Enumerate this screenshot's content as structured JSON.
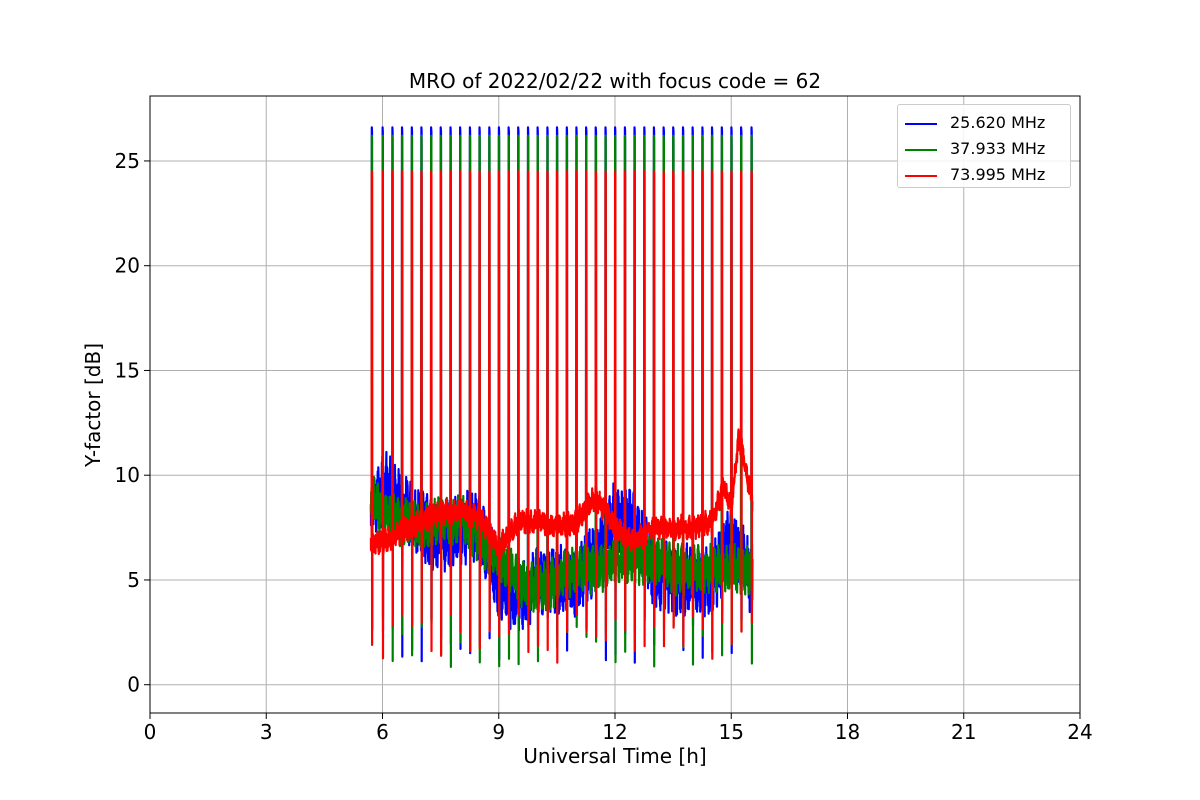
{
  "chart_data": {
    "type": "line",
    "title": "MRO of 2022/02/22 with focus code = 62",
    "xlabel": "Universal Time [h]",
    "ylabel": "Y-factor [dB]",
    "xlim": [
      0,
      24
    ],
    "ylim": [
      -1.35,
      28.1
    ],
    "xticks": [
      "0",
      "3",
      "6",
      "9",
      "12",
      "15",
      "18",
      "21",
      "24"
    ],
    "yticks": [
      "0",
      "5",
      "10",
      "15",
      "20",
      "25"
    ],
    "grid": true,
    "legend_position": "top-right",
    "data_start_hour": 5.7,
    "data_end_hour": 15.55,
    "calibration_spikes_x": [
      5.72,
      6.0,
      6.25,
      6.5,
      6.75,
      7.0,
      7.25,
      7.5,
      7.75,
      8.0,
      8.25,
      8.5,
      8.75,
      9.0,
      9.25,
      9.5,
      9.75,
      10.0,
      10.25,
      10.5,
      10.75,
      11.0,
      11.25,
      11.5,
      11.75,
      12.0,
      12.25,
      12.5,
      12.75,
      13.0,
      13.25,
      13.5,
      13.75,
      14.0,
      14.25,
      14.5,
      14.75,
      15.0,
      15.25,
      15.52
    ],
    "series": [
      {
        "name": "25.620 MHz",
        "color": "#0000ff",
        "spike_peak": 26.6,
        "spike_min": 1.0,
        "baseline_x": [
          5.7,
          6.0,
          6.5,
          7.0,
          7.5,
          8.0,
          8.5,
          9.0,
          9.5,
          10.0,
          10.5,
          11.0,
          11.5,
          12.0,
          12.5,
          13.0,
          13.5,
          14.0,
          14.5,
          15.0,
          15.55
        ],
        "baseline_y": [
          8.0,
          9.5,
          8.5,
          7.5,
          7.0,
          7.5,
          7.5,
          5.0,
          4.0,
          5.0,
          5.0,
          5.0,
          6.0,
          8.0,
          7.5,
          5.5,
          5.0,
          5.0,
          5.0,
          7.0,
          5.0
        ]
      },
      {
        "name": "37.933 MHz",
        "color": "#008000",
        "spike_peak": 26.2,
        "spike_min": 0.8,
        "baseline_x": [
          5.7,
          6.0,
          6.5,
          7.0,
          7.5,
          8.0,
          8.5,
          9.0,
          9.5,
          10.0,
          10.5,
          11.0,
          11.5,
          12.0,
          12.5,
          13.0,
          13.5,
          14.0,
          14.5,
          15.0,
          15.55
        ],
        "baseline_y": [
          9.0,
          8.0,
          7.8,
          7.5,
          7.8,
          8.0,
          7.0,
          6.0,
          5.0,
          4.5,
          5.0,
          5.5,
          5.5,
          6.0,
          6.0,
          6.0,
          5.5,
          5.5,
          5.5,
          5.5,
          5.5
        ]
      },
      {
        "name": "73.995 MHz",
        "color": "#ff0000",
        "spike_peak": 24.5,
        "spike_min": 1.0,
        "baseline_x": [
          5.7,
          6.0,
          6.5,
          7.0,
          7.5,
          8.0,
          8.5,
          9.0,
          9.5,
          10.0,
          10.5,
          11.0,
          11.5,
          12.0,
          12.5,
          13.0,
          13.5,
          14.0,
          14.5,
          14.8,
          15.0,
          15.2,
          15.55
        ],
        "baseline_y": [
          6.8,
          6.8,
          7.3,
          7.8,
          8.2,
          8.3,
          8.0,
          6.5,
          7.8,
          7.8,
          7.5,
          7.8,
          9.0,
          7.5,
          6.8,
          7.5,
          7.5,
          7.5,
          7.8,
          9.5,
          8.5,
          11.8,
          8.8
        ]
      }
    ]
  }
}
